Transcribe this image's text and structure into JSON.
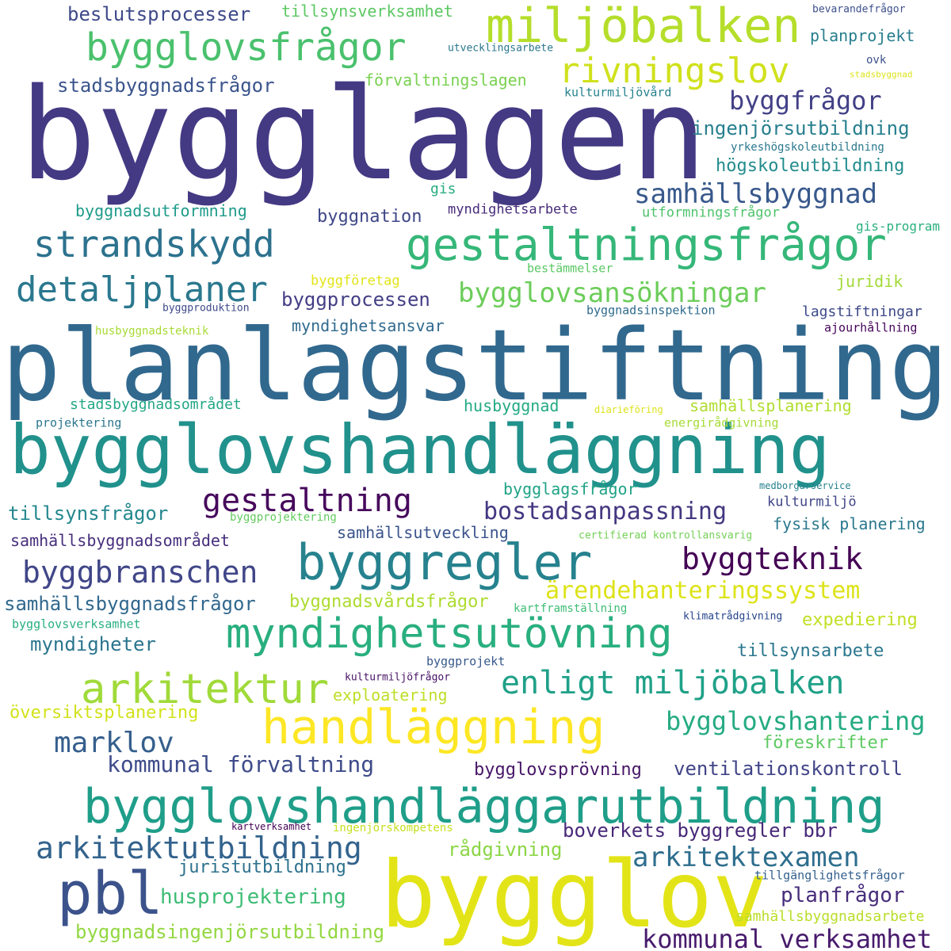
{
  "words": [
    {
      "text": "bygglagen",
      "color": "#443983"
    },
    {
      "text": "planlagstiftning",
      "color": "#31688e"
    },
    {
      "text": "bygglovshandläggning",
      "color": "#21918c"
    },
    {
      "text": "bygglov",
      "color": "#e3e418"
    },
    {
      "text": "bygglovshandläggarutbildning",
      "color": "#1f9e89"
    },
    {
      "text": "gestaltningsfrågor",
      "color": "#35b779"
    },
    {
      "text": "miljöbalken",
      "color": "#b5de2b"
    },
    {
      "text": "bygglovsfrågor",
      "color": "#4ac16d"
    },
    {
      "text": "byggregler",
      "color": "#26828e"
    },
    {
      "text": "myndighetsutövning",
      "color": "#29af7f"
    },
    {
      "text": "handläggning",
      "color": "#fde725"
    },
    {
      "text": "arkitektur",
      "color": "#a0da39"
    },
    {
      "text": "pbl",
      "color": "#3b528b"
    },
    {
      "text": "strandskydd",
      "color": "#2c728e"
    },
    {
      "text": "rivningslov",
      "color": "#d0e11c"
    },
    {
      "text": "detaljplaner",
      "color": "#2a788e"
    },
    {
      "text": "samhällsbyggnad",
      "color": "#38598c"
    },
    {
      "text": "bygglovsansökningar",
      "color": "#6ccd5a"
    },
    {
      "text": "enligt miljöbalken",
      "color": "#1fa188"
    },
    {
      "text": "gestaltning",
      "color": "#46085c"
    },
    {
      "text": "byggbranschen",
      "color": "#404688"
    },
    {
      "text": "byggteknik",
      "color": "#440154"
    },
    {
      "text": "arkitektutbildning",
      "color": "#33638d"
    },
    {
      "text": "arkitektexamen",
      "color": "#2e6e8e"
    },
    {
      "text": "bygglovshantering",
      "color": "#25ab82"
    },
    {
      "text": "marklov",
      "color": "#355f8d"
    },
    {
      "text": "husprojektering",
      "color": "#3dbc74"
    },
    {
      "text": "kommunal verksamhet",
      "color": "#481b6d"
    },
    {
      "text": "ärendehanteringssystem",
      "color": "#dde318"
    },
    {
      "text": "byggfrågor",
      "color": "#424086"
    },
    {
      "text": "bostadsanpassning",
      "color": "#453781"
    },
    {
      "text": "kommunal förvaltning",
      "color": "#3e4c8a"
    },
    {
      "text": "boverkets byggregler bbr",
      "color": "#482878"
    },
    {
      "text": "planfrågor",
      "color": "#472d7b"
    },
    {
      "text": "ventilationskontroll",
      "color": "#414487"
    },
    {
      "text": "byggnadsingenjörsutbildning",
      "color": "#93d741"
    },
    {
      "text": "beslutsprocesser",
      "color": "#3e4989"
    },
    {
      "text": "stadsbyggnadsfrågor",
      "color": "#3a548c"
    },
    {
      "text": "ingenjörsutbildning",
      "color": "#277f8e"
    },
    {
      "text": "samhällsbyggnadsfrågor",
      "color": "#31688e"
    },
    {
      "text": "byggprocessen",
      "color": "#433e85"
    },
    {
      "text": "bygglovsprövning",
      "color": "#481769"
    },
    {
      "text": "tillsynsarbete",
      "color": "#2a768e"
    },
    {
      "text": "högskoleutbildning",
      "color": "#228c8d"
    },
    {
      "text": "juristutbildning",
      "color": "#2c718e"
    },
    {
      "text": "föreskrifter",
      "color": "#5ec962"
    },
    {
      "text": "rådgivning",
      "color": "#8bd646"
    },
    {
      "text": "tillsynsfrågor",
      "color": "#24878e"
    },
    {
      "text": "myndigheter",
      "color": "#2b758e"
    },
    {
      "text": "byggnadsutformning",
      "color": "#1e9b8a"
    },
    {
      "text": "byggnation",
      "color": "#3f4788"
    },
    {
      "text": "fysisk planering",
      "color": "#2a788e"
    },
    {
      "text": "samhällsbyggnadsområdet",
      "color": "#472f7d"
    },
    {
      "text": "översiktsplanering",
      "color": "#d2e21b"
    },
    {
      "text": "expediering",
      "color": "#c2df23"
    },
    {
      "text": "byggnadsvårdsfrågor",
      "color": "#addc30"
    },
    {
      "text": "exploatering",
      "color": "#bddf26"
    },
    {
      "text": "samhällsutveckling",
      "color": "#3a548c"
    },
    {
      "text": "myndighetsansvar",
      "color": "#306a8e"
    },
    {
      "text": "planprojekt",
      "color": "#277e8e"
    },
    {
      "text": "förvaltningslagen",
      "color": "#7ad151"
    },
    {
      "text": "tillsynsverksamhet",
      "color": "#5cc863"
    },
    {
      "text": "husbyggnad",
      "color": "#23a983"
    },
    {
      "text": "samhällsplanering",
      "color": "#b0dd2f"
    },
    {
      "text": "stadsbyggnadsområdet",
      "color": "#22a785"
    },
    {
      "text": "bygglagsfrågor",
      "color": "#20a386"
    },
    {
      "text": "juridik",
      "color": "#a2da37"
    },
    {
      "text": "lagstiftningar",
      "color": "#3e4a89"
    },
    {
      "text": "samhällsbyggnadsarbete",
      "color": "#b8de29"
    },
    {
      "text": "myndighetsarbete",
      "color": "#472c7a"
    },
    {
      "text": "gis",
      "color": "#27ad81"
    },
    {
      "text": "utformningsfrågor",
      "color": "#4ec36b"
    },
    {
      "text": "gis-program",
      "color": "#2ab07f"
    },
    {
      "text": "byggföretag",
      "color": "#e2e418"
    },
    {
      "text": "bestämmelser",
      "color": "#5ac864"
    },
    {
      "text": "byggnadsinspektion",
      "color": "#2f6b8e"
    },
    {
      "text": "ajourhållning",
      "color": "#450559"
    },
    {
      "text": "husbyggnadsteknik",
      "color": "#a8db34"
    },
    {
      "text": "byggproduktion",
      "color": "#3e4989"
    },
    {
      "text": "projektering",
      "color": "#2a768e"
    },
    {
      "text": "energirådgivning",
      "color": "#a5db36"
    },
    {
      "text": "diarieföring",
      "color": "#dde318"
    },
    {
      "text": "medborgarservice",
      "color": "#26828e"
    },
    {
      "text": "kulturmiljö",
      "color": "#404688"
    },
    {
      "text": "byggprojektering",
      "color": "#63cb5f"
    },
    {
      "text": "certifierad kontrollansvarig",
      "color": "#73d056"
    },
    {
      "text": "kartframställning",
      "color": "#3dbc74"
    },
    {
      "text": "klimatrådgivning",
      "color": "#25458c"
    },
    {
      "text": "bygglovsverksamhet",
      "color": "#29af7f"
    },
    {
      "text": "byggprojekt",
      "color": "#38598c"
    },
    {
      "text": "kulturmiljöfrågor",
      "color": "#471365"
    },
    {
      "text": "kartverksamhet",
      "color": "#440154"
    },
    {
      "text": "ingenjörskompetens",
      "color": "#c5e021"
    },
    {
      "text": "tillgänglighetsfrågor",
      "color": "#35608d"
    },
    {
      "text": "bevarandefrågor",
      "color": "#3c508b"
    },
    {
      "text": "utvecklingsarbete",
      "color": "#2a768e"
    },
    {
      "text": "ovk",
      "color": "#3b528b"
    },
    {
      "text": "stadsbyggnad",
      "color": "#dde318"
    },
    {
      "text": "kulturmiljövård",
      "color": "#26828e"
    },
    {
      "text": "yrkeshögskoleutbildning",
      "color": "#2a788e"
    }
  ]
}
